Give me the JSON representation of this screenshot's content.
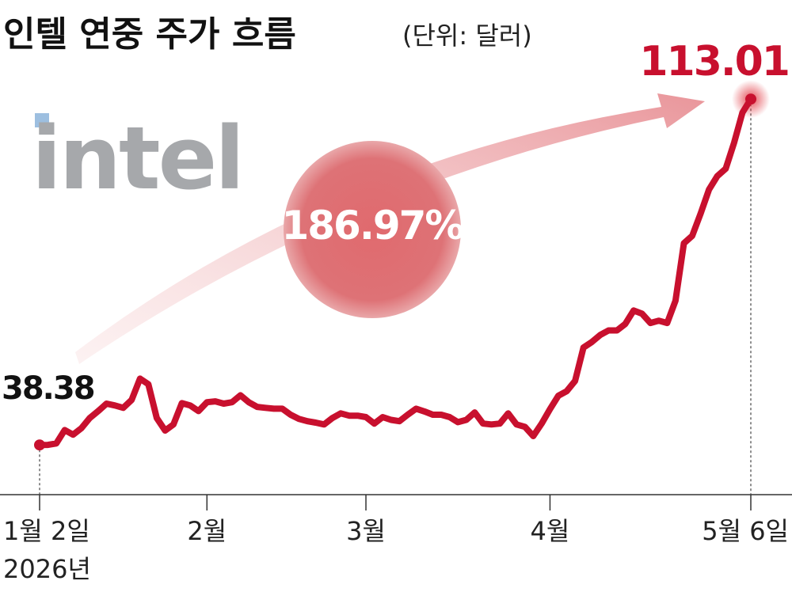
{
  "chart_data": {
    "type": "line",
    "title": "인텔 연중 주가 흐름",
    "subtitle": "(단위: 달러)",
    "logo": "intel",
    "annotation": "186.97%",
    "year_label": "2026년",
    "categories": [
      "1월 2일",
      null,
      null,
      null,
      null,
      null,
      null,
      null,
      null,
      null,
      null,
      null,
      null,
      null,
      null,
      null,
      null,
      null,
      null,
      null,
      "2월",
      null,
      null,
      null,
      null,
      null,
      null,
      null,
      null,
      null,
      null,
      null,
      null,
      null,
      null,
      null,
      null,
      null,
      null,
      "3월",
      null,
      null,
      null,
      null,
      null,
      null,
      null,
      null,
      null,
      null,
      null,
      null,
      null,
      null,
      null,
      null,
      null,
      null,
      null,
      null,
      null,
      "4월",
      null,
      null,
      null,
      null,
      null,
      null,
      null,
      null,
      null,
      null,
      null,
      null,
      null,
      null,
      null,
      null,
      null,
      null,
      null,
      null,
      null,
      null,
      null,
      "5월 6일"
    ],
    "values": [
      38.38,
      38.4,
      38.7,
      41.6,
      40.6,
      42.0,
      44.2,
      45.7,
      47.3,
      46.9,
      46.4,
      48.1,
      52.7,
      51.5,
      44.2,
      41.5,
      42.8,
      47.4,
      46.9,
      45.7,
      47.6,
      47.8,
      47.3,
      47.6,
      49.1,
      47.6,
      46.6,
      46.4,
      46.2,
      46.2,
      44.9,
      44.0,
      43.5,
      43.2,
      42.8,
      44.2,
      45.2,
      44.7,
      44.7,
      44.4,
      43.0,
      44.4,
      43.8,
      43.5,
      44.9,
      46.2,
      45.6,
      44.9,
      44.9,
      44.4,
      43.3,
      43.8,
      45.4,
      43.0,
      42.8,
      43.0,
      45.2,
      42.8,
      42.3,
      40.3,
      43.0,
      46.1,
      49.0,
      50.0,
      52.2,
      59.4,
      60.6,
      62.1,
      63.1,
      63.1,
      64.5,
      67.4,
      66.7,
      64.7,
      65.2,
      64.7,
      69.5,
      81.9,
      83.5,
      88.3,
      93.5,
      96.4,
      98.0,
      103.6,
      110.1,
      113.01
    ],
    "color": "#c8102e",
    "ylim": [
      28,
      118
    ]
  }
}
